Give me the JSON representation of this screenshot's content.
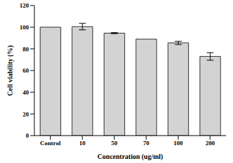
{
  "chart_data": {
    "type": "bar",
    "x_label": "Concentration (ug/ml)",
    "y_label": "Cell viability (%)",
    "categories": [
      "Control",
      "10",
      "50",
      "70",
      "100",
      "200"
    ],
    "values": [
      100,
      100.5,
      94.5,
      89,
      85.5,
      73
    ],
    "errors": [
      0,
      3,
      0.5,
      0,
      1.5,
      3.5
    ],
    "color": "#d3d3d3",
    "ylim": [
      0,
      120
    ],
    "yticks": [
      0,
      20,
      40,
      60,
      80,
      100,
      120
    ],
    "grid": false
  }
}
